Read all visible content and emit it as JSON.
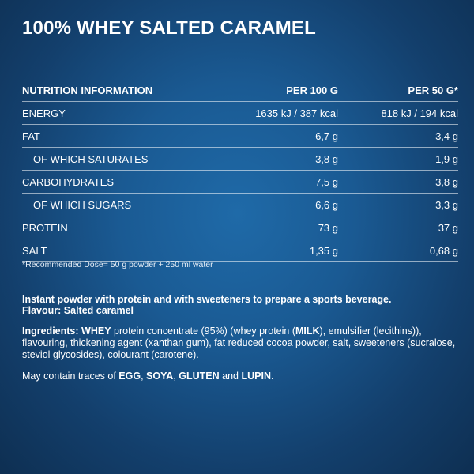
{
  "title": "100% WHEY SALTED CARAMEL",
  "table": {
    "header": {
      "label": "NUTRITION INFORMATION",
      "col1": "PER 100 G",
      "col2": "PER 50 G*"
    },
    "rows": [
      {
        "label": "ENERGY",
        "col1": "1635 kJ / 387 kcal",
        "col2": "818 kJ / 194 kcal"
      },
      {
        "label": "FAT",
        "col1": "6,7 g",
        "col2": "3,4 g"
      },
      {
        "label": "OF WHICH SATURATES",
        "col1": "3,8 g",
        "col2": "1,9 g"
      },
      {
        "label": "CARBOHYDRATES",
        "col1": "7,5 g",
        "col2": "3,8 g"
      },
      {
        "label": "OF WHICH SUGARS",
        "col1": "6,6 g",
        "col2": "3,3 g"
      },
      {
        "label": "PROTEIN",
        "col1": "73 g",
        "col2": "37 g"
      },
      {
        "label": "SALT",
        "col1": "1,35 g",
        "col2": "0,68 g"
      }
    ]
  },
  "footnote": "*Recommended Dose= 50 g powder + 250 ml water",
  "description": {
    "line1": "Instant powder with protein and with sweeteners to prepare a sports beverage.",
    "line2": "Flavour: Salted caramel"
  },
  "ingredients": {
    "label": "Ingredients:",
    "whey": "WHEY",
    "part1": " protein concentrate (95%) (whey protein (",
    "milk": "MILK",
    "part2": "), emulsifier (lecithins)), flavouring, thickening agent (xanthan gum), fat reduced cocoa powder, salt, sweeteners (sucralose, steviol glycosides), colourant (carotene)."
  },
  "traces": {
    "prefix": "May contain traces of ",
    "egg": "EGG",
    "sep1": ", ",
    "soya": "SOYA",
    "sep2": ", ",
    "gluten": "GLUTEN",
    "and": " and ",
    "lupin": "LUPIN",
    "end": "."
  }
}
